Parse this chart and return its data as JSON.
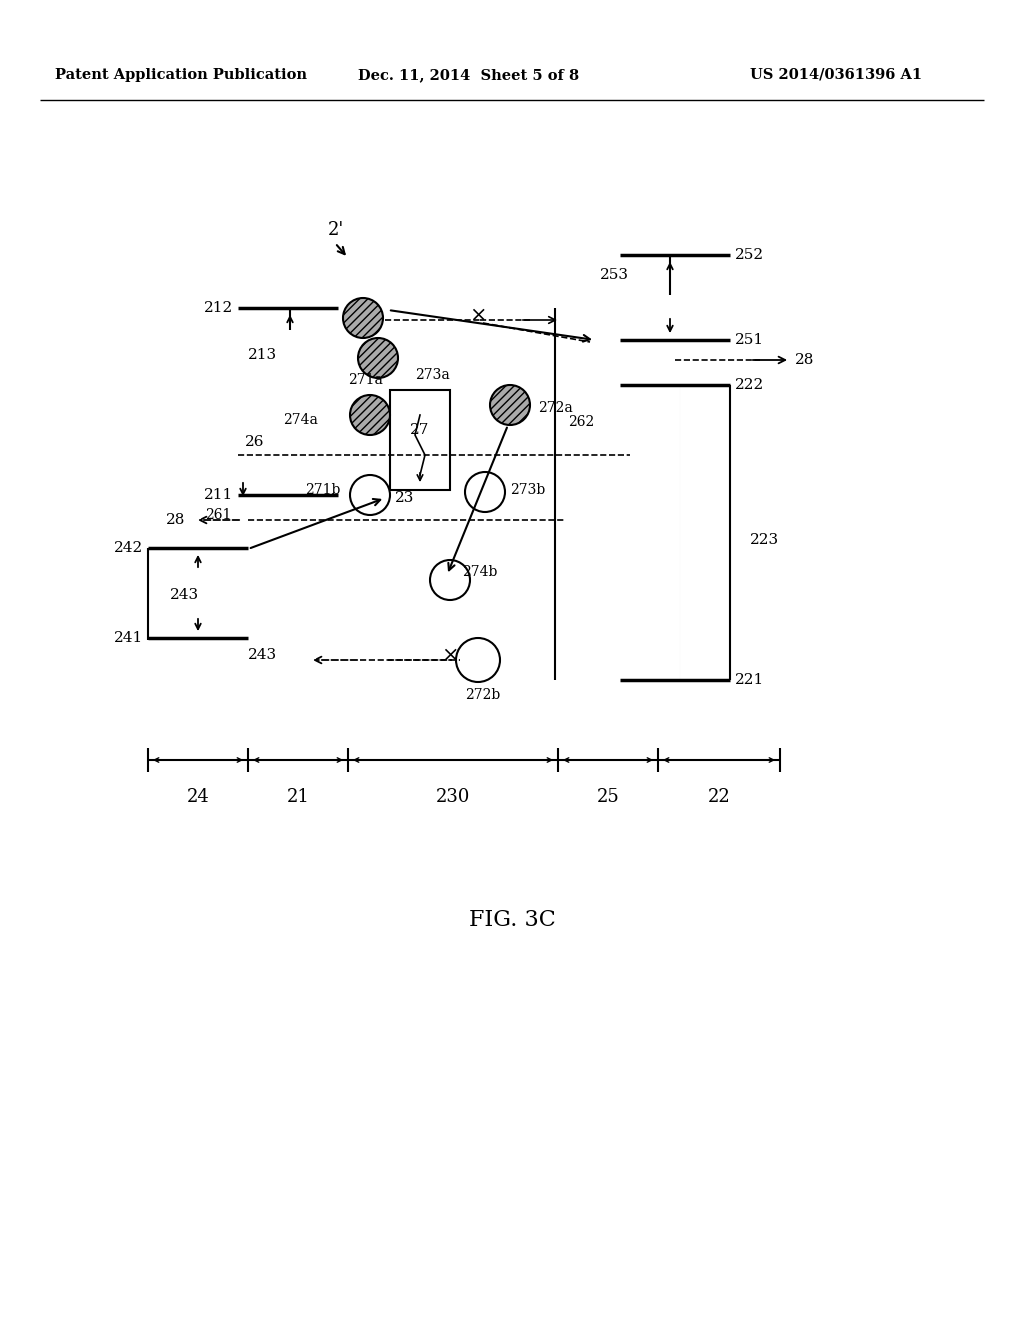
{
  "header_left": "Patent Application Publication",
  "header_mid": "Dec. 11, 2014  Sheet 5 of 8",
  "header_right": "US 2014/0361396 A1",
  "fig_label": "FIG. 3C",
  "background": "#ffffff",
  "text_color": "#000000",
  "line_color": "#000000"
}
